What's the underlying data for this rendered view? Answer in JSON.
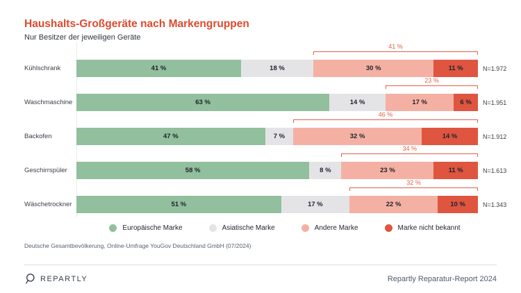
{
  "header": {
    "title": "Haushalts-Großgeräte nach Markengruppen",
    "subtitle": "Nur Besitzer der jeweiligen Geräte"
  },
  "chart_data": {
    "type": "bar",
    "orientation": "horizontal",
    "stacked": true,
    "unit": "%",
    "xlim": [
      0,
      100
    ],
    "legend_position": "bottom",
    "categories": [
      "Kühlschrank",
      "Waschmaschine",
      "Backofen",
      "Geschirrspüler",
      "Wäschetrockner"
    ],
    "series": [
      {
        "name": "Europäische Marke",
        "color": "#92BF9D",
        "values": [
          41,
          63,
          47,
          58,
          51
        ]
      },
      {
        "name": "Asiatische Marke",
        "color": "#E4E4E7",
        "values": [
          18,
          14,
          7,
          8,
          17
        ]
      },
      {
        "name": "Andere Marke",
        "color": "#F4B1A3",
        "values": [
          30,
          17,
          32,
          23,
          22
        ]
      },
      {
        "name": "Marke nicht bekannt",
        "color": "#DF5540",
        "values": [
          11,
          6,
          14,
          11,
          10
        ]
      }
    ],
    "sample_sizes": [
      "N=1.972",
      "N=1.951",
      "N=1.912",
      "N=1.613",
      "N=1.343"
    ],
    "bracket_values": [
      41,
      23,
      46,
      34,
      32
    ],
    "value_suffix": " %"
  },
  "source_note": "Deutsche Gesamtbevölkerung, Online-Umfrage YouGov Deutschland GmbH (07/2024)",
  "footer": {
    "brand_name": "REPARTLY",
    "report_label": "Repartly Reparatur-Report 2024"
  },
  "colors": {
    "title": "#DE4A2E",
    "annotation": "#E2604B"
  }
}
